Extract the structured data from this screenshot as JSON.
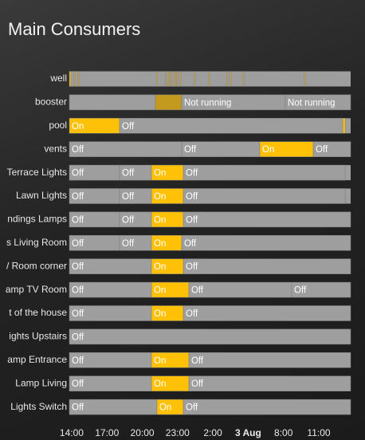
{
  "card": {
    "title": "Main Consumers"
  },
  "timeline": {
    "xlim": [
      -0.2,
      23.71
    ],
    "xticks": [
      {
        "value": 0,
        "label": "14:00"
      },
      {
        "value": 3,
        "label": "17:00"
      },
      {
        "value": 6,
        "label": "20:00"
      },
      {
        "value": 9,
        "label": "23:00"
      },
      {
        "value": 12,
        "label": "2:00"
      },
      {
        "value": 15,
        "label": "3 Aug",
        "bold": true
      },
      {
        "value": 18,
        "label": "8:00"
      },
      {
        "value": 21,
        "label": "11:00"
      }
    ],
    "state_colors": {
      "on": "#ffc107",
      "off": "#9e9e9e",
      "mixed": "#c49a1e"
    },
    "rows": [
      {
        "label": "well",
        "segments": [
          {
            "start": -0.2,
            "end": -0.07,
            "state": "on"
          },
          {
            "start": 0.2,
            "end": 0.27,
            "state": "on"
          },
          {
            "start": 0.54,
            "end": 0.61,
            "state": "on"
          },
          {
            "start": 7.18,
            "end": 7.25,
            "state": "on"
          },
          {
            "start": 7.99,
            "end": 8.06,
            "state": "on"
          },
          {
            "start": 8.27,
            "end": 8.33,
            "state": "on"
          },
          {
            "start": 8.47,
            "end": 8.54,
            "state": "on"
          },
          {
            "start": 8.74,
            "end": 8.81,
            "state": "on"
          },
          {
            "start": 8.94,
            "end": 9.01,
            "state": "on"
          },
          {
            "start": 9.21,
            "end": 9.28,
            "state": "on"
          },
          {
            "start": 10.43,
            "end": 10.5,
            "state": "on"
          },
          {
            "start": 11.65,
            "end": 11.72,
            "state": "on"
          },
          {
            "start": 13.21,
            "end": 13.28,
            "state": "on"
          },
          {
            "start": 13.48,
            "end": 13.55,
            "state": "on"
          },
          {
            "start": 14.57,
            "end": 14.63,
            "state": "on"
          },
          {
            "start": 19.78,
            "end": 19.85,
            "state": "on"
          }
        ]
      },
      {
        "label": "booster",
        "segments": [
          {
            "start": -0.2,
            "end": 7.11,
            "state": "off"
          },
          {
            "start": 7.11,
            "end": 9.35,
            "state": "mixed"
          },
          {
            "start": 9.35,
            "end": 18.16,
            "state": "off",
            "label": "Not running"
          },
          {
            "start": 18.16,
            "end": 23.71,
            "state": "off",
            "label": "Not running"
          }
        ]
      },
      {
        "label": "pool",
        "segments": [
          {
            "start": -0.2,
            "end": 4.07,
            "state": "on",
            "label": "On"
          },
          {
            "start": 4.07,
            "end": 23.04,
            "state": "off",
            "label": "Off"
          },
          {
            "start": 23.04,
            "end": 23.24,
            "state": "on"
          }
        ]
      },
      {
        "label": "vents",
        "segments": [
          {
            "start": -0.2,
            "end": 9.35,
            "state": "off",
            "label": "Off"
          },
          {
            "start": 9.35,
            "end": 15.99,
            "state": "off",
            "label": "Off"
          },
          {
            "start": 15.99,
            "end": 20.53,
            "state": "on",
            "label": "On"
          },
          {
            "start": 20.53,
            "end": 23.71,
            "state": "off",
            "label": "Off"
          }
        ]
      },
      {
        "label": "Terrace Lights",
        "segments": [
          {
            "start": -0.2,
            "end": 4.07,
            "state": "off",
            "label": "Off"
          },
          {
            "start": 4.07,
            "end": 6.78,
            "state": "off",
            "label": "Off"
          },
          {
            "start": 6.78,
            "end": 9.49,
            "state": "on",
            "label": "On"
          },
          {
            "start": 9.49,
            "end": 23.24,
            "state": "off",
            "label": "Off"
          }
        ]
      },
      {
        "label": "Lawn Lights",
        "segments": [
          {
            "start": -0.2,
            "end": 4.07,
            "state": "off",
            "label": "Off"
          },
          {
            "start": 4.07,
            "end": 6.78,
            "state": "off",
            "label": "Off"
          },
          {
            "start": 6.78,
            "end": 9.49,
            "state": "on",
            "label": "On"
          },
          {
            "start": 9.49,
            "end": 23.24,
            "state": "off",
            "label": "Off"
          }
        ]
      },
      {
        "label": "ndings Lamps",
        "segments": [
          {
            "start": -0.2,
            "end": 4.07,
            "state": "off",
            "label": "Off"
          },
          {
            "start": 4.07,
            "end": 6.78,
            "state": "off",
            "label": "Off"
          },
          {
            "start": 6.78,
            "end": 9.49,
            "state": "on",
            "label": "On"
          },
          {
            "start": 9.49,
            "end": 23.71,
            "state": "off",
            "label": "Off"
          }
        ]
      },
      {
        "label": "s Living Room",
        "segments": [
          {
            "start": -0.2,
            "end": 4.07,
            "state": "off",
            "label": "Off"
          },
          {
            "start": 4.07,
            "end": 6.78,
            "state": "off",
            "label": "Off"
          },
          {
            "start": 6.78,
            "end": 9.35,
            "state": "on",
            "label": "On"
          },
          {
            "start": 9.35,
            "end": 23.71,
            "state": "off",
            "label": "Off"
          }
        ]
      },
      {
        "label": "/ Room corner",
        "segments": [
          {
            "start": -0.2,
            "end": 6.78,
            "state": "off",
            "label": "Off"
          },
          {
            "start": 6.78,
            "end": 9.49,
            "state": "on",
            "label": "On"
          },
          {
            "start": 9.49,
            "end": 23.71,
            "state": "off",
            "label": "Off"
          }
        ]
      },
      {
        "label": "amp TV Room",
        "segments": [
          {
            "start": -0.2,
            "end": 6.78,
            "state": "off",
            "label": "Off"
          },
          {
            "start": 6.78,
            "end": 9.96,
            "state": "on",
            "label": "On"
          },
          {
            "start": 9.96,
            "end": 18.7,
            "state": "off",
            "label": "Off"
          },
          {
            "start": 18.7,
            "end": 23.71,
            "state": "off",
            "label": "Off"
          }
        ]
      },
      {
        "label": "t of the house",
        "segments": [
          {
            "start": -0.2,
            "end": 6.78,
            "state": "off",
            "label": "Off"
          },
          {
            "start": 6.78,
            "end": 9.49,
            "state": "on",
            "label": "On"
          },
          {
            "start": 9.49,
            "end": 23.71,
            "state": "off",
            "label": "Off"
          }
        ]
      },
      {
        "label": "ights Upstairs",
        "segments": [
          {
            "start": -0.2,
            "end": 23.71,
            "state": "off",
            "label": "Off"
          }
        ]
      },
      {
        "label": "amp Entrance",
        "segments": [
          {
            "start": -0.2,
            "end": 6.78,
            "state": "off",
            "label": "Off"
          },
          {
            "start": 6.78,
            "end": 9.96,
            "state": "on",
            "label": "On"
          },
          {
            "start": 9.96,
            "end": 23.71,
            "state": "off",
            "label": "Off"
          }
        ]
      },
      {
        "label": "Lamp Living",
        "segments": [
          {
            "start": -0.2,
            "end": 6.78,
            "state": "off",
            "label": "Off"
          },
          {
            "start": 6.78,
            "end": 9.96,
            "state": "on",
            "label": "On"
          },
          {
            "start": 9.96,
            "end": 23.71,
            "state": "off",
            "label": "Off"
          }
        ]
      },
      {
        "label": "Lights Switch",
        "segments": [
          {
            "start": -0.2,
            "end": 7.25,
            "state": "off",
            "label": "Off"
          },
          {
            "start": 7.25,
            "end": 9.49,
            "state": "on",
            "label": "On"
          },
          {
            "start": 9.49,
            "end": 23.71,
            "state": "off",
            "label": "Off"
          }
        ]
      }
    ]
  }
}
